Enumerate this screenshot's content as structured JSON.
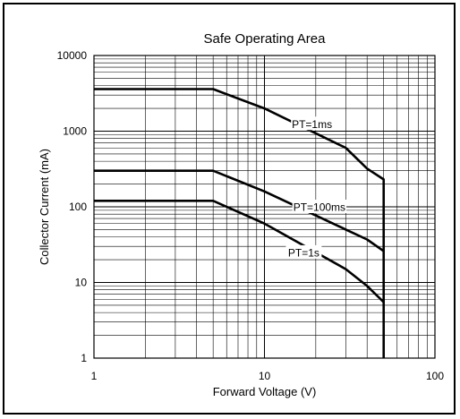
{
  "chart_data": {
    "type": "line",
    "title": "Safe Operating Area",
    "xlabel": "Forward Voltage (V)",
    "ylabel": "Collector Current (mA)",
    "xscale": "log",
    "yscale": "log",
    "xlim": [
      1,
      100
    ],
    "ylim": [
      1,
      10000
    ],
    "xticks": [
      1,
      10,
      100
    ],
    "xtick_labels": [
      "1",
      "10",
      "100"
    ],
    "yticks": [
      1,
      10,
      100,
      1000,
      10000
    ],
    "ytick_labels": [
      "1",
      "10",
      "100",
      "1000",
      "10000"
    ],
    "grid": true,
    "series": [
      {
        "name": "PT=1ms",
        "x": [
          1,
          5,
          10,
          30,
          40,
          50,
          50
        ],
        "y": [
          3600,
          3600,
          2000,
          600,
          320,
          230,
          1
        ]
      },
      {
        "name": "PT=100ms",
        "x": [
          1,
          5,
          10,
          30,
          40,
          50
        ],
        "y": [
          300,
          300,
          160,
          50,
          37,
          26
        ]
      },
      {
        "name": "PT=1s",
        "x": [
          1,
          5,
          10,
          30,
          40,
          50
        ],
        "y": [
          120,
          120,
          60,
          15,
          9,
          5.5
        ]
      }
    ]
  }
}
